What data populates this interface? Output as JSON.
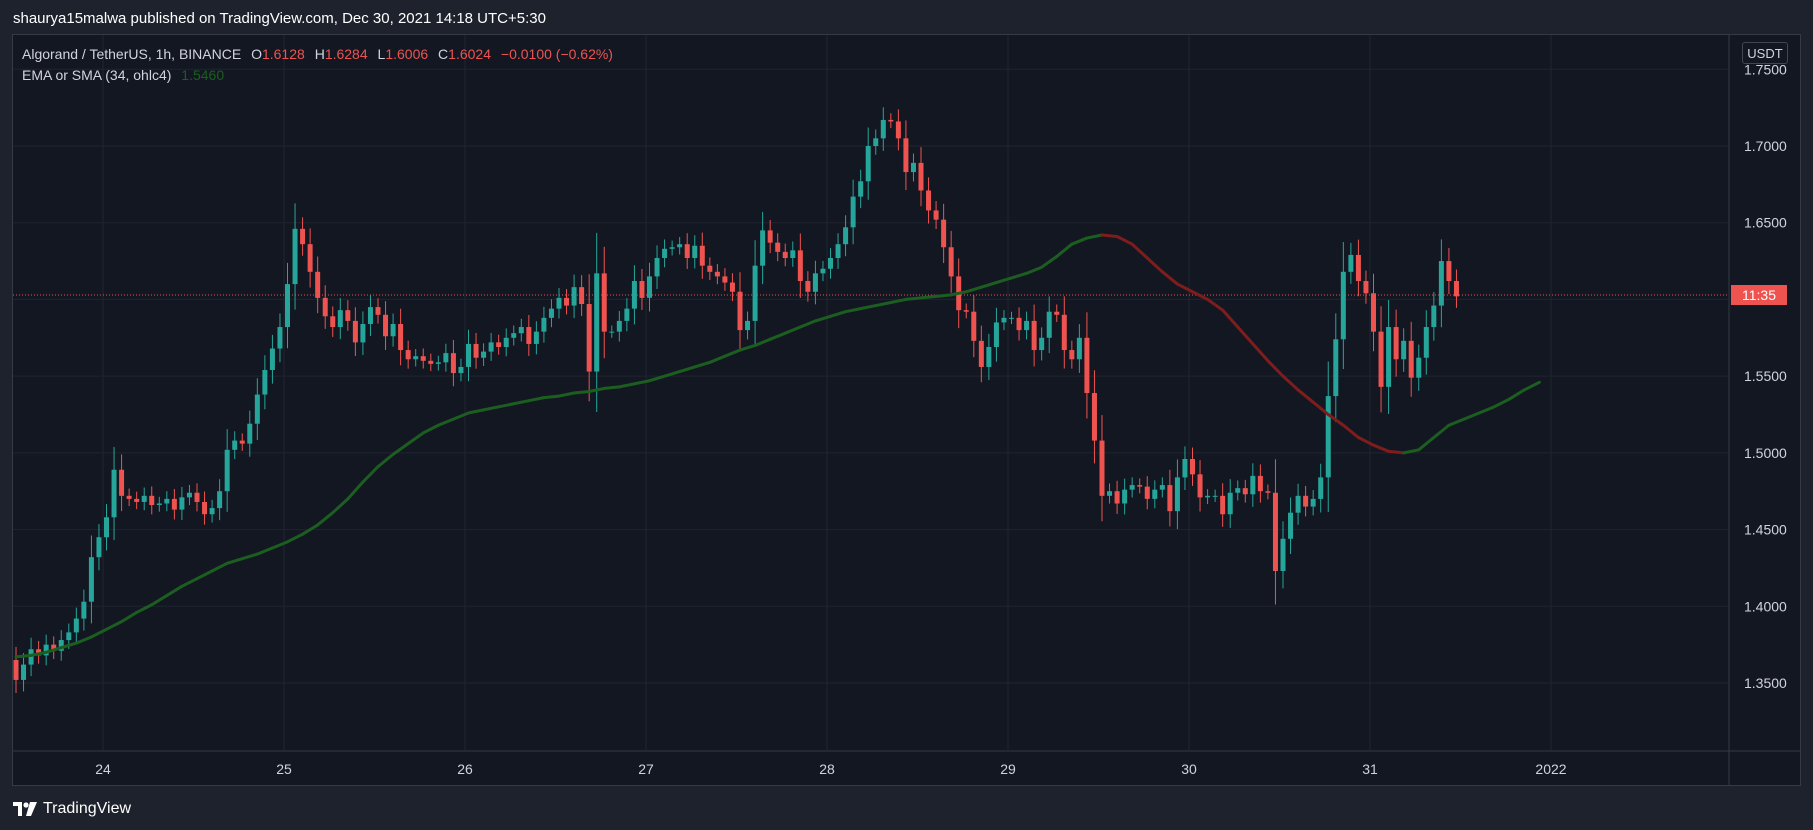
{
  "header": {
    "publisher_line": "shaurya15malwa published on TradingView.com, Dec 30, 2021 14:18 UTC+5:30"
  },
  "legend": {
    "symbol": "Algorand / TetherUS, 1h, BINANCE",
    "o_label": "O",
    "o_value": "1.6128",
    "h_label": "H",
    "h_value": "1.6284",
    "l_label": "L",
    "l_value": "1.6006",
    "c_label": "C",
    "c_value": "1.6024",
    "change": "−0.0100 (−0.62%)",
    "indicator": "EMA or SMA (34, ohlc4)",
    "indicator_value": "1.5460"
  },
  "currency": "USDT",
  "countdown": "11:35",
  "footer": {
    "brand": "TradingView"
  },
  "colors": {
    "up": "#26a69a",
    "down": "#ef5350",
    "ma_up": "#1b5e20",
    "ma_down": "#7f1d1d",
    "background": "#131722"
  },
  "chart_data": {
    "type": "candlestick",
    "title": "Algorand / TetherUS, 1h, BINANCE",
    "x_tick_labels": [
      "24",
      "25",
      "26",
      "27",
      "28",
      "29",
      "30",
      "31",
      "2022"
    ],
    "y_tick_labels": [
      "1.7500",
      "1.7000",
      "1.6500",
      "1.6000",
      "1.5500",
      "1.5000",
      "1.4500",
      "1.4000",
      "1.3500"
    ],
    "ylim": [
      1.3,
      1.76
    ],
    "current_price": 1.6024,
    "grid": true,
    "candles_close": [
      1.352,
      1.362,
      1.372,
      1.368,
      1.375,
      1.371,
      1.378,
      1.383,
      1.392,
      1.403,
      1.432,
      1.445,
      1.458,
      1.489,
      1.472,
      1.47,
      1.468,
      1.472,
      1.466,
      1.467,
      1.47,
      1.463,
      1.471,
      1.474,
      1.468,
      1.46,
      1.464,
      1.475,
      1.502,
      1.508,
      1.506,
      1.519,
      1.538,
      1.554,
      1.568,
      1.582,
      1.61,
      1.646,
      1.636,
      1.618,
      1.601,
      1.589,
      1.582,
      1.593,
      1.586,
      1.572,
      1.584,
      1.595,
      1.59,
      1.576,
      1.584,
      1.567,
      1.561,
      1.563,
      1.56,
      1.558,
      1.559,
      1.565,
      1.552,
      1.556,
      1.571,
      1.562,
      1.566,
      1.572,
      1.569,
      1.575,
      1.578,
      1.582,
      1.571,
      1.579,
      1.588,
      1.594,
      1.601,
      1.596,
      1.608,
      1.597,
      1.553,
      1.617,
      1.579,
      1.579,
      1.586,
      1.594,
      1.612,
      1.601,
      1.615,
      1.627,
      1.633,
      1.634,
      1.636,
      1.627,
      1.635,
      1.622,
      1.618,
      1.615,
      1.611,
      1.605,
      1.58,
      1.586,
      1.622,
      1.645,
      1.637,
      1.631,
      1.627,
      1.632,
      1.612,
      1.605,
      1.617,
      1.62,
      1.627,
      1.636,
      1.647,
      1.667,
      1.677,
      1.7,
      1.705,
      1.717,
      1.716,
      1.705,
      1.683,
      1.689,
      1.671,
      1.658,
      1.652,
      1.634,
      1.615,
      1.593,
      1.592,
      1.573,
      1.556,
      1.569,
      1.585,
      1.588,
      1.588,
      1.58,
      1.586,
      1.567,
      1.575,
      1.592,
      1.59,
      1.567,
      1.561,
      1.575,
      1.539,
      1.508,
      1.472,
      1.475,
      1.467,
      1.476,
      1.479,
      1.478,
      1.47,
      1.476,
      1.479,
      1.462,
      1.484,
      1.496,
      1.486,
      1.471,
      1.472,
      1.472,
      1.46,
      1.474,
      1.477,
      1.473,
      1.485,
      1.475,
      1.474,
      1.423,
      1.444,
      1.461,
      1.472,
      1.465,
      1.47,
      1.484,
      1.537,
      1.574,
      1.618,
      1.629,
      1.612,
      1.604,
      1.579,
      1.543,
      1.582,
      1.561,
      1.573,
      1.549,
      1.562,
      1.582,
      1.596,
      1.625,
      1.612,
      1.602
    ],
    "ema_34": [
      1.367,
      1.368,
      1.37,
      1.373,
      1.376,
      1.38,
      1.385,
      1.39,
      1.396,
      1.401,
      1.407,
      1.413,
      1.418,
      1.423,
      1.428,
      1.431,
      1.434,
      1.438,
      1.442,
      1.447,
      1.453,
      1.461,
      1.47,
      1.481,
      1.491,
      1.499,
      1.506,
      1.513,
      1.518,
      1.522,
      1.526,
      1.528,
      1.53,
      1.532,
      1.534,
      1.536,
      1.537,
      1.539,
      1.54,
      1.542,
      1.543,
      1.545,
      1.547,
      1.55,
      1.553,
      1.556,
      1.559,
      1.563,
      1.567,
      1.57,
      1.574,
      1.578,
      1.582,
      1.586,
      1.589,
      1.592,
      1.594,
      1.596,
      1.598,
      1.6,
      1.601,
      1.602,
      1.603,
      1.605,
      1.608,
      1.611,
      1.614,
      1.617,
      1.621,
      1.628,
      1.636,
      1.64,
      1.642,
      1.641,
      1.636,
      1.627,
      1.618,
      1.61,
      1.605,
      1.6,
      1.593,
      1.582,
      1.571,
      1.56,
      1.55,
      1.541,
      1.533,
      1.525,
      1.518,
      1.51,
      1.505,
      1.501,
      1.5,
      1.502,
      1.51,
      1.518,
      1.522,
      1.526,
      1.53,
      1.535,
      1.541,
      1.546
    ]
  }
}
